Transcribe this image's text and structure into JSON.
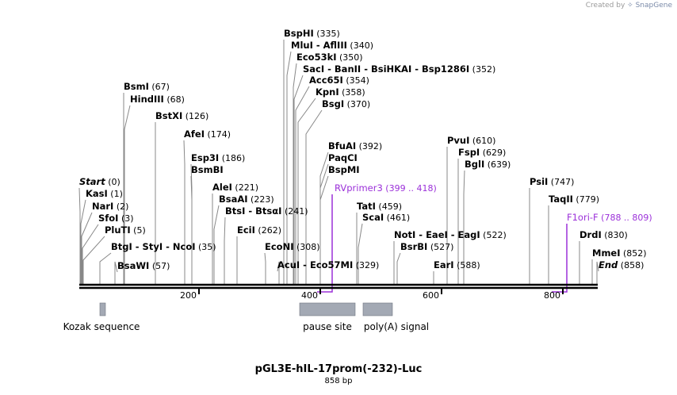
{
  "credit": {
    "prefix": "Created by",
    "brand": "SnapGene"
  },
  "map": {
    "title": "pGL3E-hIL-17prom(-232)-Luc",
    "length_label": "858 bp",
    "ruler_ticks": [
      "200",
      "400",
      "600",
      "800"
    ],
    "sites": [
      {
        "label": "BspHI",
        "pos": "(335)"
      },
      {
        "label": "MluI  -  AflIII",
        "pos": "(340)"
      },
      {
        "label": "Eco53kI",
        "pos": "(350)"
      },
      {
        "label": "SacI  -  BanII  -  BsiHKAI  -  Bsp1286I",
        "pos": "(352)"
      },
      {
        "label": "Acc65I",
        "pos": "(354)"
      },
      {
        "label": "KpnI",
        "pos": "(358)"
      },
      {
        "label": "BsgI",
        "pos": "(370)"
      },
      {
        "label": "BsmI",
        "pos": "(67)"
      },
      {
        "label": "HindIII",
        "pos": "(68)"
      },
      {
        "label": "BstXI",
        "pos": "(126)"
      },
      {
        "label": "AfeI",
        "pos": "(174)"
      },
      {
        "label": "Esp3I",
        "pos": "(186)"
      },
      {
        "label": "BsmBI",
        "pos": ""
      },
      {
        "label": "BfuAI",
        "pos": "(392)"
      },
      {
        "label": "PaqCI",
        "pos": ""
      },
      {
        "label": "BspMI",
        "pos": ""
      },
      {
        "label": "PvuI",
        "pos": "(610)"
      },
      {
        "label": "FspI",
        "pos": "(629)"
      },
      {
        "label": "BglI",
        "pos": "(639)"
      },
      {
        "label": "Start",
        "pos": "(0)"
      },
      {
        "label": "KasI",
        "pos": "(1)"
      },
      {
        "label": "NarI",
        "pos": "(2)"
      },
      {
        "label": "SfoI",
        "pos": "(3)"
      },
      {
        "label": "PluTI",
        "pos": "(5)"
      },
      {
        "label": "BtgI  -  StyI  -  NcoI",
        "pos": "(35)"
      },
      {
        "label": "BsaWI",
        "pos": "(57)"
      },
      {
        "label": "AleI",
        "pos": "(221)"
      },
      {
        "label": "BsaAI",
        "pos": "(223)"
      },
      {
        "label": "BtsI  -  BtsαI",
        "pos": "(241)"
      },
      {
        "label": "EciI",
        "pos": "(262)"
      },
      {
        "label": "EcoNI",
        "pos": "(308)"
      },
      {
        "label": "AcuI  -  Eco57MI",
        "pos": "(329)"
      },
      {
        "label": "TatI",
        "pos": "(459)"
      },
      {
        "label": "ScaI",
        "pos": "(461)"
      },
      {
        "label": "NotI  -  EaeI  -  EagI",
        "pos": "(522)"
      },
      {
        "label": "BsrBI",
        "pos": "(527)"
      },
      {
        "label": "EarI",
        "pos": "(588)"
      },
      {
        "label": "PsiI",
        "pos": "(747)"
      },
      {
        "label": "TaqII",
        "pos": "(779)"
      },
      {
        "label": "DrdI",
        "pos": "(830)"
      },
      {
        "label": "MmeI",
        "pos": "(852)"
      },
      {
        "label": "End",
        "pos": "(858)"
      }
    ],
    "primers": [
      {
        "label": "RVprimer3",
        "pos": "(399 .. 418)"
      },
      {
        "label": "F1ori-F",
        "pos": "(788 .. 809)"
      }
    ],
    "features": [
      {
        "label": "Kozak sequence"
      },
      {
        "label": "pause site"
      },
      {
        "label": "poly(A) signal"
      }
    ],
    "colors": {
      "primer": "#9b30d9",
      "feature": "#a3a9b4",
      "line": "#888888",
      "backbone": "#000000"
    }
  }
}
